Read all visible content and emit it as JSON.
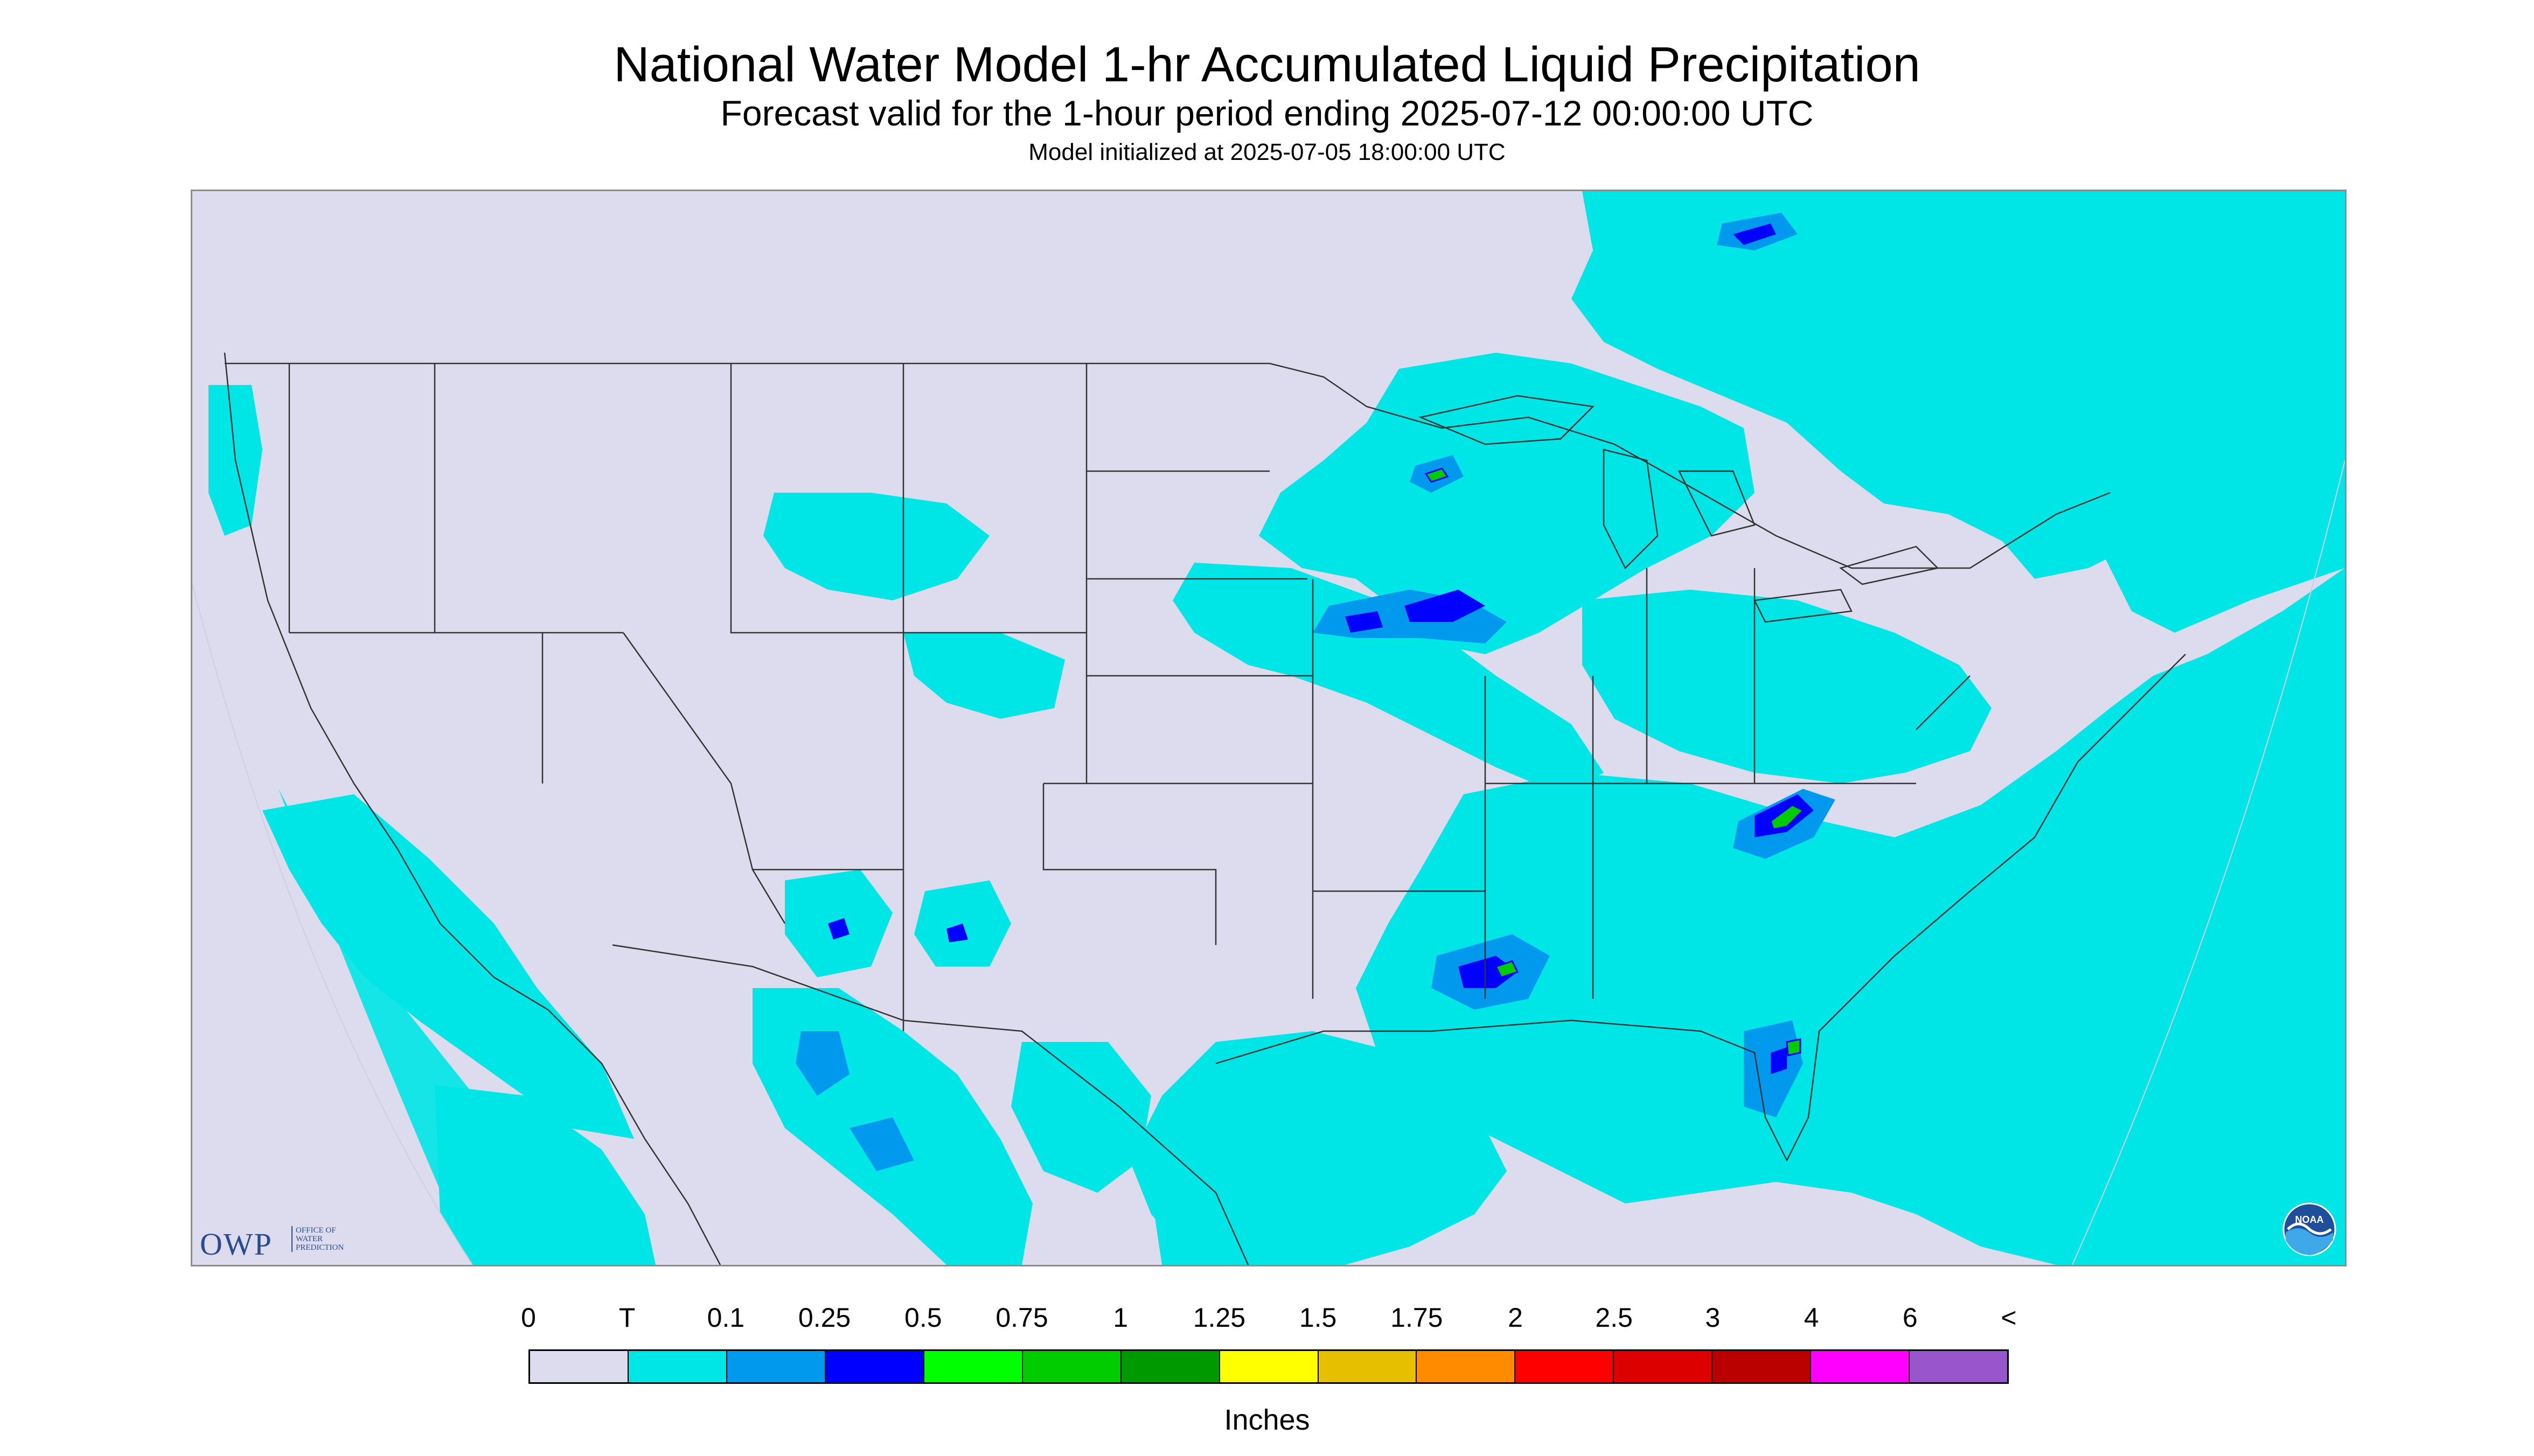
{
  "header": {
    "title": "National Water Model 1-hr Accumulated Liquid Precipitation",
    "subtitle": "Forecast valid for the 1-hour period ending 2025-07-12 00:00:00 UTC",
    "init": "Model initialized at 2025-07-05 18:00:00 UTC"
  },
  "logos": {
    "owp_letters": "OWP",
    "owp_sub_1": "OFFICE OF",
    "owp_sub_2": "WATER",
    "owp_sub_3": "PREDICTION",
    "noaa": "NOAA"
  },
  "legend": {
    "labels": [
      "0",
      "T",
      "0.1",
      "0.25",
      "0.5",
      "0.75",
      "1",
      "1.25",
      "1.5",
      "1.75",
      "2",
      "2.5",
      "3",
      "4",
      "6",
      "<"
    ],
    "colors": [
      "#dcdcee",
      "#00e5e5",
      "#0099ee",
      "#0000ff",
      "#00ff00",
      "#00cc00",
      "#009900",
      "#ffff00",
      "#e5bf00",
      "#ff8c00",
      "#ff0000",
      "#dd0000",
      "#bb0000",
      "#ff00ff",
      "#9955cc"
    ],
    "unit": "Inches"
  },
  "map": {
    "background_color": "#dcdcee",
    "outside_color": "#dcdcee",
    "trace_color": "#00e5e5",
    "light_color": "#0099ee",
    "mod_color": "#0000ff",
    "heavy_color": "#00cc00"
  }
}
